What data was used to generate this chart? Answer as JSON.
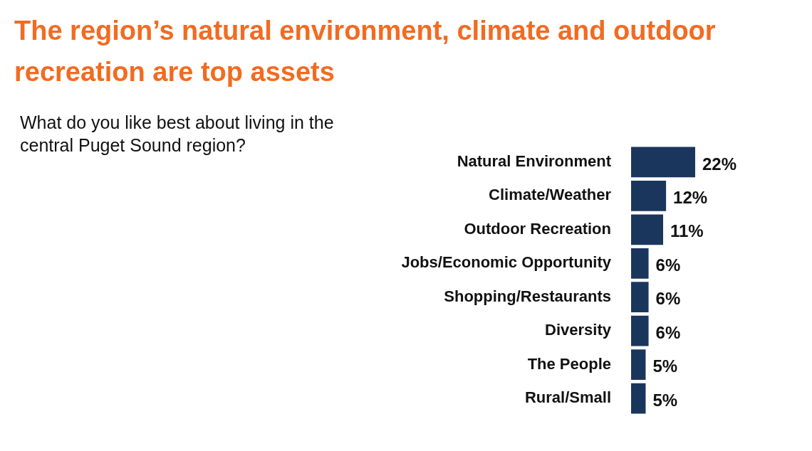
{
  "chart_data": {
    "type": "bar",
    "orientation": "horizontal",
    "title": "The region’s natural environment, climate and outdoor recreation are top assets",
    "subtitle": "What do you like best about living in the central Puget Sound region?",
    "categories": [
      "Natural Environment",
      "Climate/Weather",
      "Outdoor Recreation",
      "Jobs/Economic Opportunity",
      "Shopping/Restaurants",
      "Diversity",
      "The People",
      "Rural/Small"
    ],
    "values": [
      22,
      12,
      11,
      6,
      6,
      6,
      5,
      5
    ],
    "value_labels": [
      "22%",
      "12%",
      "11%",
      "6%",
      "6%",
      "6%",
      "5%",
      "5%"
    ],
    "color": "#1b365d",
    "grid": false,
    "legend": false
  }
}
